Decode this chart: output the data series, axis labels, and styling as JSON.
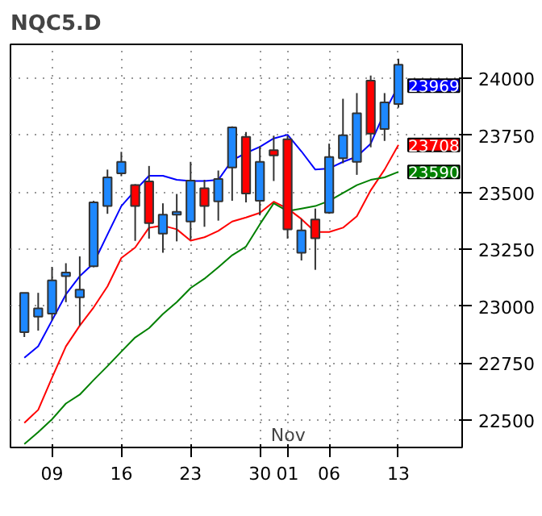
{
  "chart_data": {
    "type": "candlestick",
    "title": "NQC5.D",
    "categories": [
      null,
      null,
      "09",
      null,
      null,
      null,
      null,
      "16",
      null,
      null,
      null,
      null,
      "23",
      null,
      null,
      null,
      null,
      "30",
      null,
      "01",
      null,
      null,
      "06",
      null,
      null,
      null,
      null,
      "13"
    ],
    "ohlc": [
      [
        22886,
        23059,
        22865,
        23059
      ],
      [
        22954,
        23059,
        22893,
        22991
      ],
      [
        22968,
        23173,
        22938,
        23114
      ],
      [
        23132,
        23189,
        23018,
        23148
      ],
      [
        23039,
        23219,
        22915,
        23073
      ],
      [
        23176,
        23463,
        23171,
        23456
      ],
      [
        23440,
        23600,
        23406,
        23566
      ],
      [
        23584,
        23678,
        23571,
        23634
      ],
      [
        23532,
        23536,
        23287,
        23440
      ],
      [
        23548,
        23616,
        23297,
        23365
      ],
      [
        23319,
        23452,
        23235,
        23402
      ],
      [
        23402,
        23493,
        23285,
        23415
      ],
      [
        23372,
        23634,
        23292,
        23552
      ],
      [
        23518,
        23555,
        23349,
        23440
      ],
      [
        23461,
        23596,
        23376,
        23559
      ],
      [
        23609,
        23790,
        23463,
        23785
      ],
      [
        23744,
        23765,
        23456,
        23495
      ],
      [
        23463,
        23703,
        23399,
        23634
      ],
      [
        23685,
        23749,
        23550,
        23662
      ],
      [
        23733,
        23749,
        23297,
        23338
      ],
      [
        23235,
        23383,
        23201,
        23333
      ],
      [
        23381,
        23429,
        23160,
        23299
      ],
      [
        23411,
        23714,
        23406,
        23655
      ],
      [
        23650,
        23911,
        23628,
        23751
      ],
      [
        23634,
        23936,
        23577,
        23847
      ],
      [
        23991,
        24013,
        23698,
        23758
      ],
      [
        23778,
        23936,
        23726,
        23895
      ],
      [
        23888,
        24087,
        23872,
        24061
      ]
    ],
    "colors": [
      "#1e88ff",
      "#1e88ff",
      "#1e88ff",
      "#1e88ff",
      "#1e88ff",
      "#1e88ff",
      "#1e88ff",
      "#1e88ff",
      "#ff0000",
      "#ff0000",
      "#1e88ff",
      "#1e88ff",
      "#1e88ff",
      "#ff0000",
      "#1e88ff",
      "#1e88ff",
      "#ff0000",
      "#1e88ff",
      "#ff0000",
      "#ff0000",
      "#1e88ff",
      "#ff0000",
      "#1e88ff",
      "#1e88ff",
      "#1e88ff",
      "#ff0000",
      "#1e88ff",
      "#1e88ff"
    ],
    "series": [
      {
        "type": "line",
        "color": "#0000ff",
        "values": [
          22774,
          22824,
          22938,
          23052,
          23132,
          23189,
          23315,
          23440,
          23509,
          23573,
          23573,
          23555,
          23550,
          23550,
          23555,
          23641,
          23673,
          23700,
          23737,
          23753,
          23680,
          23600,
          23605,
          23634,
          23657,
          23714,
          23851,
          23969
        ],
        "value_labels": [
          null,
          null,
          null,
          null,
          null,
          null,
          null,
          null,
          null,
          null,
          null,
          null,
          null,
          null,
          null,
          null,
          null,
          null,
          null,
          null,
          null,
          null,
          null,
          null,
          null,
          null,
          null,
          "23969"
        ]
      },
      {
        "type": "line",
        "color": "#ff0000",
        "values": [
          22488,
          22545,
          22687,
          22824,
          22915,
          22995,
          23087,
          23212,
          23258,
          23345,
          23354,
          23338,
          23288,
          23303,
          23331,
          23372,
          23390,
          23410,
          23459,
          23429,
          23383,
          23326,
          23326,
          23345,
          23395,
          23509,
          23600,
          23708
        ],
        "value_labels": [
          null,
          null,
          null,
          null,
          null,
          null,
          null,
          null,
          null,
          null,
          null,
          null,
          null,
          null,
          null,
          null,
          null,
          null,
          null,
          null,
          null,
          null,
          null,
          null,
          null,
          null,
          null,
          "23708"
        ]
      },
      {
        "type": "line",
        "color": "#008000",
        "values": [
          22395,
          22447,
          22504,
          22573,
          22612,
          22676,
          22737,
          22801,
          22863,
          22904,
          22966,
          23018,
          23080,
          23121,
          23171,
          23224,
          23262,
          23360,
          23452,
          23418,
          23429,
          23440,
          23463,
          23497,
          23532,
          23555,
          23566,
          23590
        ],
        "value_labels": [
          null,
          null,
          null,
          null,
          null,
          null,
          null,
          null,
          null,
          null,
          null,
          null,
          null,
          null,
          null,
          null,
          null,
          null,
          null,
          null,
          null,
          null,
          null,
          null,
          null,
          null,
          null,
          "23590"
        ]
      }
    ],
    "annotations": [
      "Nov"
    ],
    "ylim": [
      22380,
      24150
    ],
    "yticks": [
      22500,
      22750,
      23000,
      23250,
      23500,
      23750,
      24000
    ],
    "grid": true,
    "marker": "none",
    "line_style": "solid"
  }
}
